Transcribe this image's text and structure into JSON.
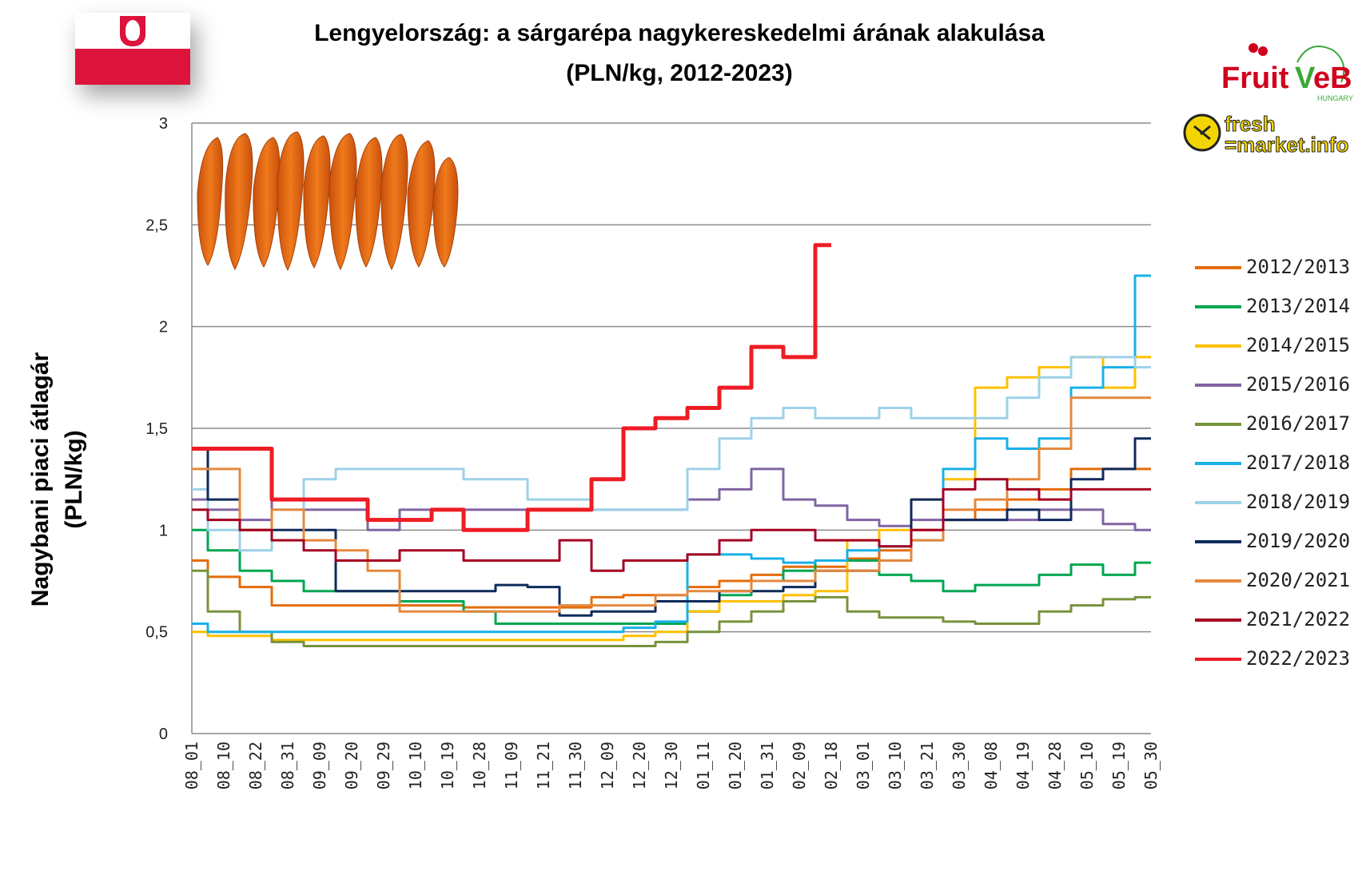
{
  "title_line1": "Lengyelország: a sárgarépa nagykereskedelmi árának alakulása",
  "title_line2": "(PLN/kg, 2012-2023)",
  "logos": {
    "fruitveb": "FruitVeB",
    "fruitveb_sub": "HUNGARY",
    "freshmarket_top": "fresh",
    "freshmarket_bottom": "market.info"
  },
  "chart_data": {
    "type": "line",
    "ylabel_line1": "Nagybani piaci átlagár",
    "ylabel_line2": "(PLN/kg)",
    "ylim": [
      0,
      3
    ],
    "yticks": [
      "0",
      "0,5",
      "1",
      "1,5",
      "2",
      "2,5",
      "3"
    ],
    "grid": "horizontal",
    "legend_position": "right",
    "categories": [
      "08_01",
      "08_10",
      "08_22",
      "08_31",
      "09_09",
      "09_20",
      "09_29",
      "10_10",
      "10_19",
      "10_28",
      "11_09",
      "11_21",
      "11_30",
      "12_09",
      "12_20",
      "12_30",
      "01_11",
      "01_20",
      "01_31",
      "02_09",
      "02_18",
      "03_01",
      "03_10",
      "03_21",
      "03_30",
      "04_08",
      "04_19",
      "04_28",
      "05_10",
      "05_19",
      "05_30"
    ],
    "series": [
      {
        "name": "2012/2013",
        "color": "#e46c0a",
        "values": [
          0.85,
          0.77,
          0.72,
          0.63,
          0.63,
          0.63,
          0.63,
          0.63,
          0.63,
          0.62,
          0.62,
          0.62,
          0.62,
          0.67,
          0.68,
          0.68,
          0.72,
          0.75,
          0.78,
          0.82,
          0.82,
          0.86,
          0.9,
          1.0,
          1.05,
          1.1,
          1.15,
          1.2,
          1.3,
          1.3,
          1.3
        ]
      },
      {
        "name": "2013/2014",
        "color": "#00a650",
        "values": [
          1.0,
          0.9,
          0.8,
          0.75,
          0.7,
          0.7,
          0.7,
          0.65,
          0.65,
          0.6,
          0.54,
          0.54,
          0.54,
          0.54,
          0.54,
          0.54,
          0.6,
          0.68,
          0.75,
          0.8,
          0.85,
          0.85,
          0.78,
          0.75,
          0.7,
          0.73,
          0.73,
          0.78,
          0.83,
          0.78,
          0.84
        ]
      },
      {
        "name": "2014/2015",
        "color": "#ffc000",
        "values": [
          0.5,
          0.48,
          0.48,
          0.46,
          0.46,
          0.46,
          0.46,
          0.46,
          0.46,
          0.46,
          0.46,
          0.46,
          0.46,
          0.46,
          0.48,
          0.5,
          0.6,
          0.65,
          0.65,
          0.68,
          0.7,
          0.95,
          1.0,
          1.15,
          1.25,
          1.7,
          1.75,
          1.8,
          1.85,
          1.7,
          1.85
        ]
      },
      {
        "name": "2015/2016",
        "color": "#8064a2",
        "values": [
          1.15,
          1.1,
          1.05,
          1.15,
          1.1,
          1.1,
          1.0,
          1.1,
          1.1,
          1.1,
          1.1,
          1.1,
          1.1,
          1.1,
          1.1,
          1.1,
          1.15,
          1.2,
          1.3,
          1.15,
          1.12,
          1.05,
          1.02,
          1.05,
          1.05,
          1.05,
          1.05,
          1.1,
          1.1,
          1.03,
          1.0
        ]
      },
      {
        "name": "2016/2017",
        "color": "#77933c",
        "values": [
          0.8,
          0.6,
          0.5,
          0.45,
          0.43,
          0.43,
          0.43,
          0.43,
          0.43,
          0.43,
          0.43,
          0.43,
          0.43,
          0.43,
          0.43,
          0.45,
          0.5,
          0.55,
          0.6,
          0.65,
          0.67,
          0.6,
          0.57,
          0.57,
          0.55,
          0.54,
          0.54,
          0.6,
          0.63,
          0.66,
          0.67
        ]
      },
      {
        "name": "2017/2018",
        "color": "#1ab0e8",
        "values": [
          0.54,
          0.5,
          0.5,
          0.5,
          0.5,
          0.5,
          0.5,
          0.5,
          0.5,
          0.5,
          0.5,
          0.5,
          0.5,
          0.5,
          0.52,
          0.55,
          0.88,
          0.88,
          0.86,
          0.84,
          0.85,
          0.9,
          0.92,
          0.95,
          1.3,
          1.45,
          1.4,
          1.45,
          1.7,
          1.8,
          2.25
        ]
      },
      {
        "name": "2018/2019",
        "color": "#9dd1e8",
        "values": [
          1.2,
          1.0,
          0.9,
          1.1,
          1.25,
          1.3,
          1.3,
          1.3,
          1.3,
          1.25,
          1.25,
          1.15,
          1.15,
          1.1,
          1.1,
          1.1,
          1.3,
          1.45,
          1.55,
          1.6,
          1.55,
          1.55,
          1.6,
          1.55,
          1.55,
          1.55,
          1.65,
          1.75,
          1.85,
          1.85,
          1.8
        ]
      },
      {
        "name": "2019/2020",
        "color": "#0f2b5b",
        "values": [
          1.4,
          1.15,
          1.0,
          1.0,
          1.0,
          0.7,
          0.7,
          0.7,
          0.7,
          0.7,
          0.73,
          0.72,
          0.58,
          0.6,
          0.6,
          0.65,
          0.65,
          0.7,
          0.7,
          0.72,
          0.8,
          0.8,
          0.85,
          1.15,
          1.05,
          1.05,
          1.1,
          1.05,
          1.25,
          1.3,
          1.45
        ]
      },
      {
        "name": "2020/2021",
        "color": "#e5883d",
        "values": [
          1.3,
          1.3,
          1.0,
          1.1,
          0.95,
          0.9,
          0.8,
          0.6,
          0.6,
          0.6,
          0.6,
          0.6,
          0.63,
          0.63,
          0.63,
          0.68,
          0.7,
          0.7,
          0.75,
          0.75,
          0.8,
          0.8,
          0.85,
          0.95,
          1.1,
          1.15,
          1.25,
          1.4,
          1.65,
          1.65,
          1.65
        ]
      },
      {
        "name": "2021/2022",
        "color": "#a50021",
        "values": [
          1.1,
          1.05,
          1.0,
          0.95,
          0.9,
          0.85,
          0.85,
          0.9,
          0.9,
          0.85,
          0.85,
          0.85,
          0.95,
          0.8,
          0.85,
          0.85,
          0.88,
          0.95,
          1.0,
          1.0,
          0.95,
          0.95,
          0.92,
          1.0,
          1.2,
          1.25,
          1.2,
          1.15,
          1.2,
          1.2,
          1.2
        ]
      },
      {
        "name": "2022/2023",
        "color": "#ee1c25",
        "values": [
          1.4,
          1.4,
          1.4,
          1.15,
          1.15,
          1.15,
          1.05,
          1.05,
          1.1,
          1.0,
          1.0,
          1.1,
          1.1,
          1.25,
          1.5,
          1.55,
          1.6,
          1.7,
          1.9,
          1.85,
          2.4,
          null,
          null,
          null,
          null,
          null,
          null,
          null,
          null,
          null,
          null
        ]
      }
    ]
  }
}
